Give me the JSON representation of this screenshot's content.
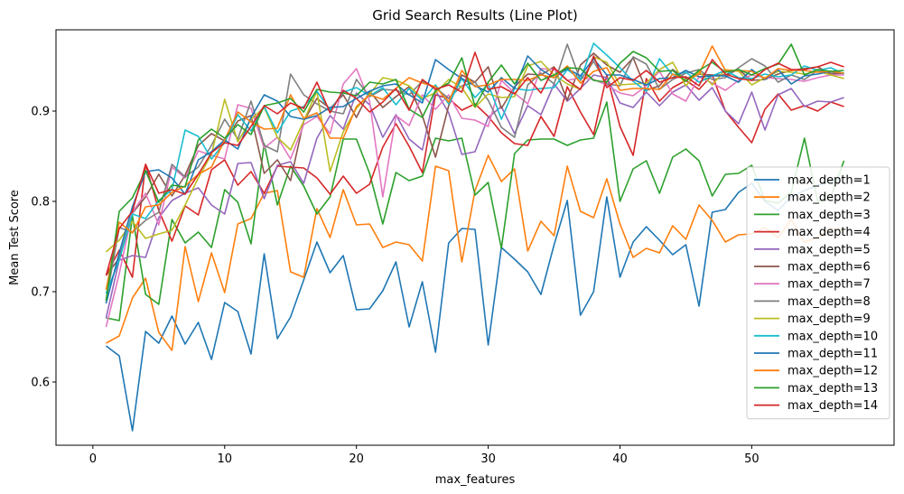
{
  "chart_data": {
    "type": "line",
    "title": "Grid Search Results (Line Plot)",
    "xlabel": "max_features",
    "ylabel": "Mean Test Score",
    "xlim": [
      -2.8,
      60.8
    ],
    "ylim": [
      0.53,
      0.99
    ],
    "xticks": [
      0,
      10,
      20,
      30,
      40,
      50
    ],
    "yticks": [
      0.6,
      0.7,
      0.8,
      0.9
    ],
    "grid": false,
    "legend_position": "right",
    "x_range": [
      1,
      57
    ],
    "series": [
      {
        "name": "max_depth=1",
        "color": "#1f77b4",
        "values": [
          0.64,
          0.629,
          0.546,
          0.656,
          0.643,
          0.673,
          0.642,
          0.666,
          0.625,
          0.688,
          0.678,
          0.631,
          0.742,
          0.648,
          0.672,
          0.713,
          0.755,
          0.721,
          0.74,
          0.68,
          0.681,
          0.701,
          0.733,
          0.661,
          0.711,
          0.633,
          0.754,
          0.77,
          0.769,
          0.641,
          0.749,
          0.736,
          0.722,
          0.697,
          0.752,
          0.801,
          0.674,
          0.7,
          0.805,
          0.716,
          0.755,
          0.772,
          0.757,
          0.741,
          0.752,
          0.684,
          0.788,
          0.791,
          0.81,
          0.82,
          0.8,
          0.79,
          0.805,
          0.812,
          0.818,
          0.822,
          0.826
        ]
      },
      {
        "name": "max_depth=2",
        "color": "#ff7f0e",
        "values": [
          0.643,
          0.651,
          0.693,
          0.715,
          0.655,
          0.635,
          0.75,
          0.689,
          0.743,
          0.699,
          0.775,
          0.781,
          0.809,
          0.812,
          0.722,
          0.716,
          0.792,
          0.76,
          0.813,
          0.774,
          0.775,
          0.749,
          0.755,
          0.752,
          0.734,
          0.839,
          0.834,
          0.733,
          0.812,
          0.851,
          0.822,
          0.836,
          0.745,
          0.778,
          0.762,
          0.839,
          0.789,
          0.782,
          0.825,
          0.775,
          0.738,
          0.748,
          0.743,
          0.773,
          0.758,
          0.796,
          0.779,
          0.755,
          0.763,
          0.764,
          0.771,
          0.76,
          0.78,
          0.755,
          0.76,
          0.77,
          0.768
        ]
      },
      {
        "name": "max_depth=3",
        "color": "#2ca02c",
        "values": [
          0.671,
          0.668,
          0.784,
          0.697,
          0.686,
          0.78,
          0.754,
          0.766,
          0.749,
          0.813,
          0.799,
          0.753,
          0.864,
          0.796,
          0.839,
          0.817,
          0.786,
          0.805,
          0.869,
          0.869,
          0.831,
          0.775,
          0.832,
          0.823,
          0.828,
          0.87,
          0.867,
          0.87,
          0.807,
          0.821,
          0.748,
          0.853,
          0.868,
          0.869,
          0.869,
          0.862,
          0.868,
          0.87,
          0.91,
          0.8,
          0.836,
          0.845,
          0.809,
          0.849,
          0.858,
          0.845,
          0.806,
          0.83,
          0.831,
          0.84,
          0.801,
          0.798,
          0.81,
          0.87,
          0.8,
          0.805,
          0.845
        ]
      },
      {
        "name": "max_depth=4",
        "color": "#d62728",
        "values": [
          0.718,
          0.746,
          0.716,
          0.841,
          0.79,
          0.756,
          0.795,
          0.785,
          0.835,
          0.846,
          0.818,
          0.833,
          0.809,
          0.839,
          0.838,
          0.837,
          0.826,
          0.808,
          0.828,
          0.809,
          0.819,
          0.86,
          0.886,
          0.861,
          0.832,
          0.918,
          0.914,
          0.901,
          0.908,
          0.894,
          0.876,
          0.864,
          0.862,
          0.894,
          0.872,
          0.927,
          0.899,
          0.874,
          0.94,
          0.883,
          0.851,
          0.936,
          0.911,
          0.926,
          0.934,
          0.924,
          0.94,
          0.9,
          0.882,
          0.865,
          0.902,
          0.919,
          0.901,
          0.906,
          0.9,
          0.91,
          0.905
        ]
      },
      {
        "name": "max_depth=5",
        "color": "#9467bd",
        "values": [
          0.671,
          0.735,
          0.74,
          0.738,
          0.782,
          0.801,
          0.809,
          0.815,
          0.796,
          0.786,
          0.842,
          0.843,
          0.803,
          0.84,
          0.844,
          0.82,
          0.87,
          0.895,
          0.88,
          0.92,
          0.907,
          0.871,
          0.896,
          0.869,
          0.857,
          0.923,
          0.898,
          0.852,
          0.855,
          0.893,
          0.905,
          0.875,
          0.906,
          0.896,
          0.93,
          0.911,
          0.925,
          0.94,
          0.937,
          0.909,
          0.904,
          0.921,
          0.906,
          0.921,
          0.929,
          0.912,
          0.926,
          0.9,
          0.886,
          0.921,
          0.879,
          0.918,
          0.925,
          0.905,
          0.911,
          0.91,
          0.915
        ]
      },
      {
        "name": "max_depth=6",
        "color": "#8c564b",
        "values": [
          0.718,
          0.737,
          0.787,
          0.805,
          0.83,
          0.806,
          0.829,
          0.862,
          0.875,
          0.867,
          0.889,
          0.895,
          0.831,
          0.846,
          0.823,
          0.889,
          0.914,
          0.903,
          0.918,
          0.893,
          0.922,
          0.904,
          0.916,
          0.927,
          0.895,
          0.849,
          0.906,
          0.94,
          0.932,
          0.949,
          0.903,
          0.927,
          0.941,
          0.94,
          0.949,
          0.912,
          0.951,
          0.964,
          0.951,
          0.943,
          0.959,
          0.923,
          0.928,
          0.946,
          0.936,
          0.941,
          0.94,
          0.94,
          0.946,
          0.934,
          0.935,
          0.941,
          0.945,
          0.947,
          0.949,
          0.941,
          0.942
        ]
      },
      {
        "name": "max_depth=7",
        "color": "#e377c2",
        "values": [
          0.661,
          0.72,
          0.788,
          0.809,
          0.774,
          0.838,
          0.826,
          0.856,
          0.851,
          0.847,
          0.907,
          0.903,
          0.859,
          0.871,
          0.847,
          0.885,
          0.894,
          0.875,
          0.93,
          0.947,
          0.911,
          0.805,
          0.895,
          0.884,
          0.918,
          0.902,
          0.918,
          0.892,
          0.89,
          0.883,
          0.934,
          0.92,
          0.908,
          0.947,
          0.946,
          0.934,
          0.937,
          0.935,
          0.929,
          0.92,
          0.917,
          0.928,
          0.944,
          0.919,
          0.911,
          0.938,
          0.931,
          0.923,
          0.934,
          0.94,
          0.937,
          0.936,
          0.935,
          0.933,
          0.937,
          0.94,
          0.94
        ]
      },
      {
        "name": "max_depth=8",
        "color": "#7f7f7f",
        "values": [
          0.69,
          0.771,
          0.766,
          0.779,
          0.788,
          0.841,
          0.827,
          0.838,
          0.862,
          0.891,
          0.869,
          0.911,
          0.862,
          0.855,
          0.941,
          0.918,
          0.908,
          0.9,
          0.897,
          0.935,
          0.916,
          0.924,
          0.923,
          0.918,
          0.933,
          0.926,
          0.914,
          0.928,
          0.932,
          0.912,
          0.882,
          0.871,
          0.929,
          0.942,
          0.93,
          0.974,
          0.934,
          0.955,
          0.93,
          0.928,
          0.96,
          0.952,
          0.924,
          0.935,
          0.942,
          0.946,
          0.935,
          0.937,
          0.948,
          0.958,
          0.95,
          0.932,
          0.94,
          0.935,
          0.945,
          0.943,
          0.942
        ]
      },
      {
        "name": "max_depth=9",
        "color": "#bcbd22",
        "values": [
          0.744,
          0.757,
          0.778,
          0.759,
          0.764,
          0.768,
          0.796,
          0.826,
          0.852,
          0.913,
          0.866,
          0.891,
          0.904,
          0.871,
          0.857,
          0.889,
          0.922,
          0.833,
          0.877,
          0.903,
          0.919,
          0.937,
          0.934,
          0.928,
          0.914,
          0.92,
          0.935,
          0.926,
          0.904,
          0.919,
          0.915,
          0.916,
          0.95,
          0.955,
          0.94,
          0.93,
          0.924,
          0.96,
          0.954,
          0.929,
          0.93,
          0.931,
          0.946,
          0.954,
          0.928,
          0.944,
          0.929,
          0.946,
          0.944,
          0.929,
          0.937,
          0.944,
          0.943,
          0.941,
          0.944,
          0.94,
          0.936
        ]
      },
      {
        "name": "max_depth=10",
        "color": "#17becf",
        "values": [
          0.698,
          0.735,
          0.786,
          0.781,
          0.801,
          0.813,
          0.879,
          0.872,
          0.847,
          0.865,
          0.896,
          0.878,
          0.905,
          0.876,
          0.9,
          0.905,
          0.922,
          0.901,
          0.921,
          0.926,
          0.917,
          0.926,
          0.907,
          0.925,
          0.912,
          0.929,
          0.908,
          0.936,
          0.915,
          0.93,
          0.891,
          0.925,
          0.923,
          0.925,
          0.926,
          0.946,
          0.935,
          0.975,
          0.962,
          0.948,
          0.933,
          0.922,
          0.958,
          0.94,
          0.943,
          0.932,
          0.939,
          0.945,
          0.937,
          0.936,
          0.941,
          0.938,
          0.94,
          0.95,
          0.945,
          0.948,
          0.941
        ]
      },
      {
        "name": "max_depth=11",
        "color": "#1f77b4",
        "values": [
          0.687,
          0.743,
          0.794,
          0.833,
          0.835,
          0.826,
          0.808,
          0.846,
          0.855,
          0.868,
          0.858,
          0.893,
          0.918,
          0.911,
          0.894,
          0.891,
          0.895,
          0.904,
          0.905,
          0.914,
          0.922,
          0.928,
          0.93,
          0.918,
          0.909,
          0.957,
          0.946,
          0.936,
          0.928,
          0.921,
          0.937,
          0.925,
          0.961,
          0.946,
          0.937,
          0.947,
          0.939,
          0.958,
          0.94,
          0.94,
          0.935,
          0.929,
          0.936,
          0.937,
          0.945,
          0.938,
          0.939,
          0.939,
          0.932,
          0.946,
          0.935,
          0.946,
          0.93,
          0.939,
          0.941,
          0.944,
          0.942
        ]
      },
      {
        "name": "max_depth=12",
        "color": "#ff7f0e",
        "values": [
          0.702,
          0.777,
          0.765,
          0.794,
          0.796,
          0.81,
          0.817,
          0.83,
          0.838,
          0.868,
          0.899,
          0.888,
          0.88,
          0.881,
          0.918,
          0.892,
          0.898,
          0.87,
          0.87,
          0.905,
          0.918,
          0.913,
          0.925,
          0.937,
          0.931,
          0.927,
          0.91,
          0.945,
          0.927,
          0.929,
          0.935,
          0.935,
          0.934,
          0.94,
          0.937,
          0.95,
          0.931,
          0.944,
          0.948,
          0.923,
          0.925,
          0.925,
          0.924,
          0.941,
          0.934,
          0.941,
          0.972,
          0.945,
          0.945,
          0.944,
          0.936,
          0.947,
          0.945,
          0.945,
          0.943,
          0.944,
          0.942
        ]
      },
      {
        "name": "max_depth=13",
        "color": "#2ca02c",
        "values": [
          0.69,
          0.789,
          0.804,
          0.834,
          0.799,
          0.818,
          0.816,
          0.868,
          0.88,
          0.87,
          0.885,
          0.874,
          0.906,
          0.909,
          0.914,
          0.899,
          0.924,
          0.921,
          0.92,
          0.917,
          0.932,
          0.93,
          0.935,
          0.902,
          0.893,
          0.923,
          0.931,
          0.959,
          0.905,
          0.932,
          0.951,
          0.93,
          0.953,
          0.934,
          0.94,
          0.948,
          0.947,
          0.934,
          0.932,
          0.953,
          0.966,
          0.959,
          0.944,
          0.945,
          0.933,
          0.945,
          0.954,
          0.943,
          0.946,
          0.94,
          0.947,
          0.952,
          0.974,
          0.94,
          0.946,
          0.944,
          0.945
        ]
      },
      {
        "name": "max_depth=14",
        "color": "#d62728",
        "values": [
          0.718,
          0.77,
          0.789,
          0.841,
          0.809,
          0.813,
          0.808,
          0.83,
          0.854,
          0.865,
          0.862,
          0.883,
          0.906,
          0.897,
          0.909,
          0.903,
          0.932,
          0.898,
          0.923,
          0.914,
          0.899,
          0.91,
          0.925,
          0.901,
          0.935,
          0.924,
          0.929,
          0.921,
          0.965,
          0.924,
          0.927,
          0.919,
          0.937,
          0.92,
          0.948,
          0.934,
          0.924,
          0.961,
          0.926,
          0.937,
          0.934,
          0.945,
          0.932,
          0.937,
          0.938,
          0.928,
          0.957,
          0.941,
          0.936,
          0.934,
          0.946,
          0.953,
          0.946,
          0.946,
          0.949,
          0.954,
          0.949
        ]
      }
    ]
  }
}
